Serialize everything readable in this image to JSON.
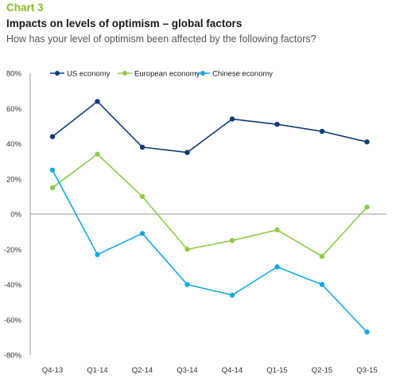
{
  "header": {
    "chart_number": "Chart 3",
    "title": "Impacts on levels of optimism – global factors",
    "subtitle": "How has your level of optimism been affected by the following factors?"
  },
  "chart_data": {
    "type": "line",
    "categories": [
      "Q4-13",
      "Q1-14",
      "Q2-14",
      "Q3-14",
      "Q4-14",
      "Q1-15",
      "Q2-15",
      "Q3-15"
    ],
    "y_ticks": [
      "80%",
      "60%",
      "40%",
      "20%",
      "0%",
      "-20%",
      "-40%",
      "-60%",
      "-80%"
    ],
    "ylim": [
      -80,
      80
    ],
    "legend_position": "top",
    "series": [
      {
        "name": "US economy",
        "color": "#0b3b7a",
        "values": [
          44,
          64,
          38,
          35,
          54,
          51,
          47,
          41
        ]
      },
      {
        "name": "European economy",
        "color": "#8fcb49",
        "values": [
          15,
          34,
          10,
          -20,
          -15,
          -9,
          -24,
          4
        ]
      },
      {
        "name": "Chinese economy",
        "color": "#12a9e1",
        "values": [
          25,
          -23,
          -11,
          -40,
          -46,
          -30,
          -40,
          -67
        ]
      }
    ]
  }
}
